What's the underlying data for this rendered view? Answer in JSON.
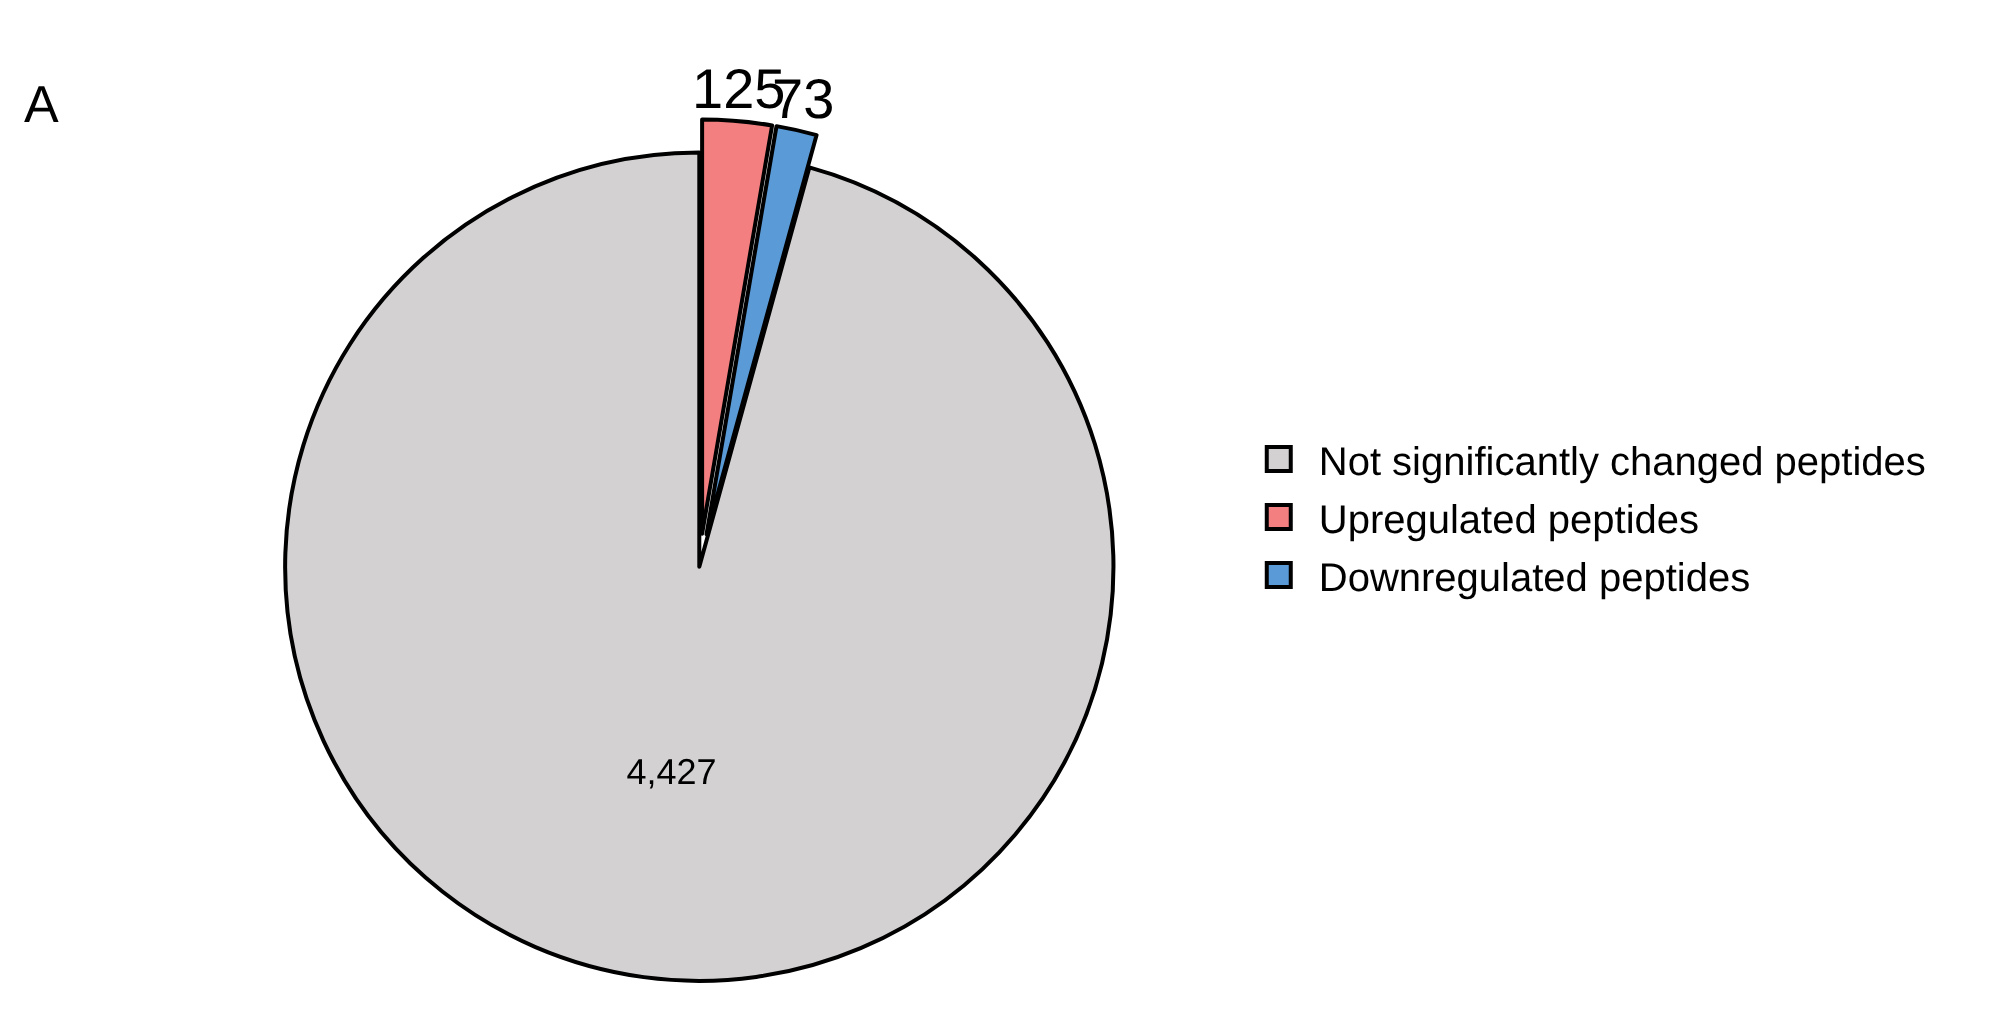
{
  "chart_data": {
    "type": "pie",
    "categories": [
      "Not significantly changed peptides",
      "Upregulated peptides",
      "Downregulated peptides"
    ],
    "values": [
      4427,
      125,
      73
    ],
    "colors": [
      "#d3d1d2",
      "#f47f80",
      "#5a9ad6"
    ],
    "value_labels": [
      "4,427",
      "125",
      "73"
    ],
    "annotations": [
      "A"
    ],
    "legend": "right"
  }
}
